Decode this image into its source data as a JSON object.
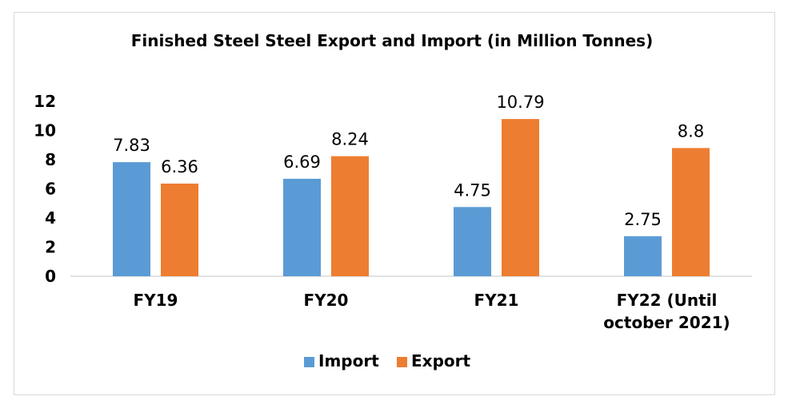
{
  "chart_data": {
    "type": "bar",
    "title": "Finished Steel Steel Export and Import (in Million Tonnes)",
    "categories": [
      "FY19",
      "FY20",
      "FY21",
      "FY22 (Until october 2021)"
    ],
    "series": [
      {
        "name": "Import",
        "values": [
          7.83,
          6.69,
          4.75,
          2.75
        ],
        "labels": [
          "7.83",
          "6.69",
          "4.75",
          "2.75"
        ],
        "color": "#5B9BD5"
      },
      {
        "name": "Export",
        "values": [
          6.36,
          8.24,
          10.79,
          8.8
        ],
        "labels": [
          "6.36",
          "8.24",
          "10.79",
          "8.8"
        ],
        "color": "#ED7D31"
      }
    ],
    "yticks": [
      "0",
      "2",
      "4",
      "6",
      "8",
      "10",
      "12"
    ],
    "ylim": [
      0,
      12
    ],
    "grid": false,
    "legend_position": "bottom"
  }
}
